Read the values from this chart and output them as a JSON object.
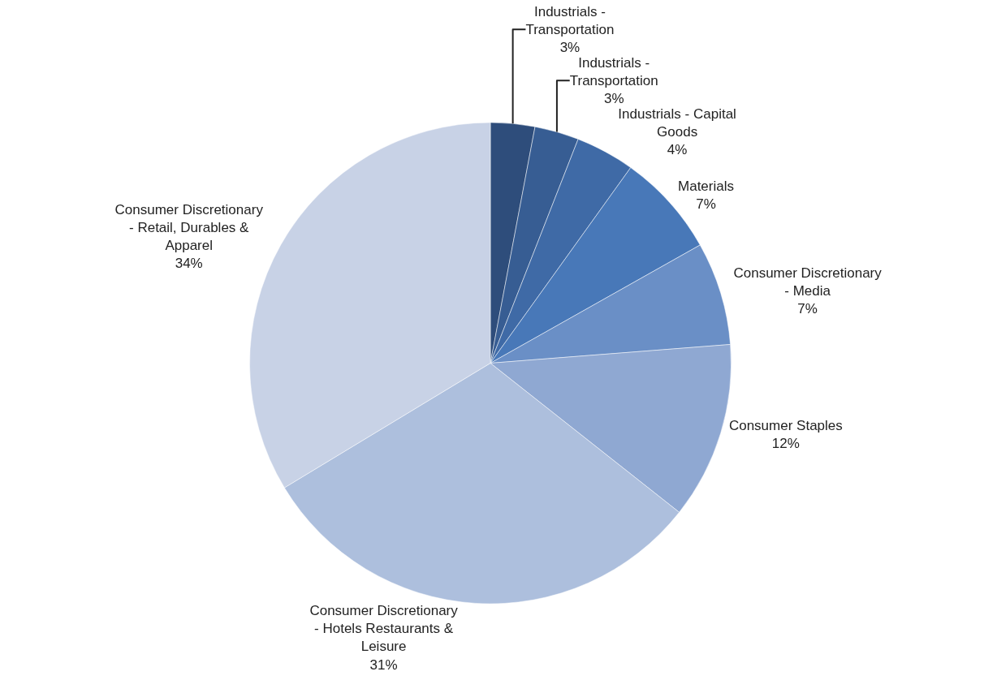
{
  "chart_data": {
    "type": "pie",
    "categories": [
      "Industrials - Transportation",
      "Industrials - Transportation",
      "Industrials - Capital Goods",
      "Materials",
      "Consumer Discretionary - Media",
      "Consumer Staples",
      "Consumer Discretionary - Hotels Restaurants & Leisure",
      "Consumer Discretionary - Retail, Durables & Apparel"
    ],
    "values": [
      3,
      3,
      4,
      7,
      7,
      12,
      31,
      34
    ],
    "value_labels": [
      "3%",
      "3%",
      "4%",
      "7%",
      "7%",
      "12%",
      "31%",
      "34%"
    ],
    "colors": [
      "#2e4d7b",
      "#375d93",
      "#3f6aa6",
      "#4878b8",
      "#6a8fc6",
      "#8fa8d2",
      "#adbfdd",
      "#c8d2e6"
    ],
    "legend": false
  }
}
